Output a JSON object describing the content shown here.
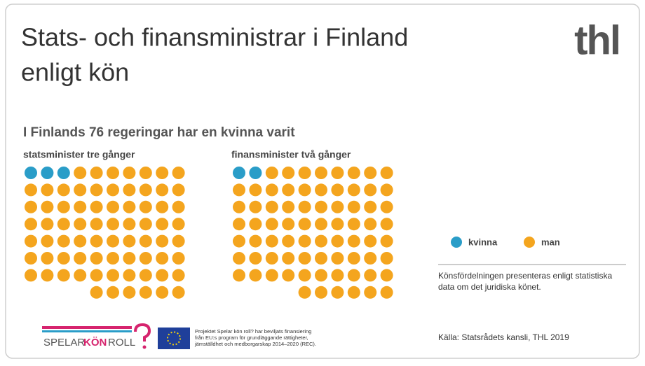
{
  "header": {
    "title_lines": [
      "Stats- och finansministrar i Finland",
      "enligt kön"
    ],
    "logo": "thl"
  },
  "chart_data": {
    "type": "waffle",
    "title": "I Finlands 76 regeringar har en kvinna varit",
    "categories": [
      "statsminister tre gånger",
      "finansminister två gånger"
    ],
    "series": [
      {
        "name": "kvinna",
        "color": "#2a9dc8",
        "values": [
          3,
          2
        ]
      },
      {
        "name": "man",
        "color": "#f4a51e",
        "values": [
          73,
          74
        ]
      }
    ]
  },
  "note": [
    "Könsfördelningen presenteras enligt statistiska",
    "data om det juridiska könet."
  ],
  "source": "Källa: Statsrådets kansli, THL 2019",
  "footer": {
    "logo_words": [
      "SPELAR",
      "KÖN",
      "ROLL"
    ],
    "eu_text": [
      "Projektet Spelar kön roll? har beviljats finansiering",
      "från EU:s program för grundläggande rättigheter,",
      "jämställdhet och medborgarskap 2014–2020 (REC)."
    ]
  }
}
